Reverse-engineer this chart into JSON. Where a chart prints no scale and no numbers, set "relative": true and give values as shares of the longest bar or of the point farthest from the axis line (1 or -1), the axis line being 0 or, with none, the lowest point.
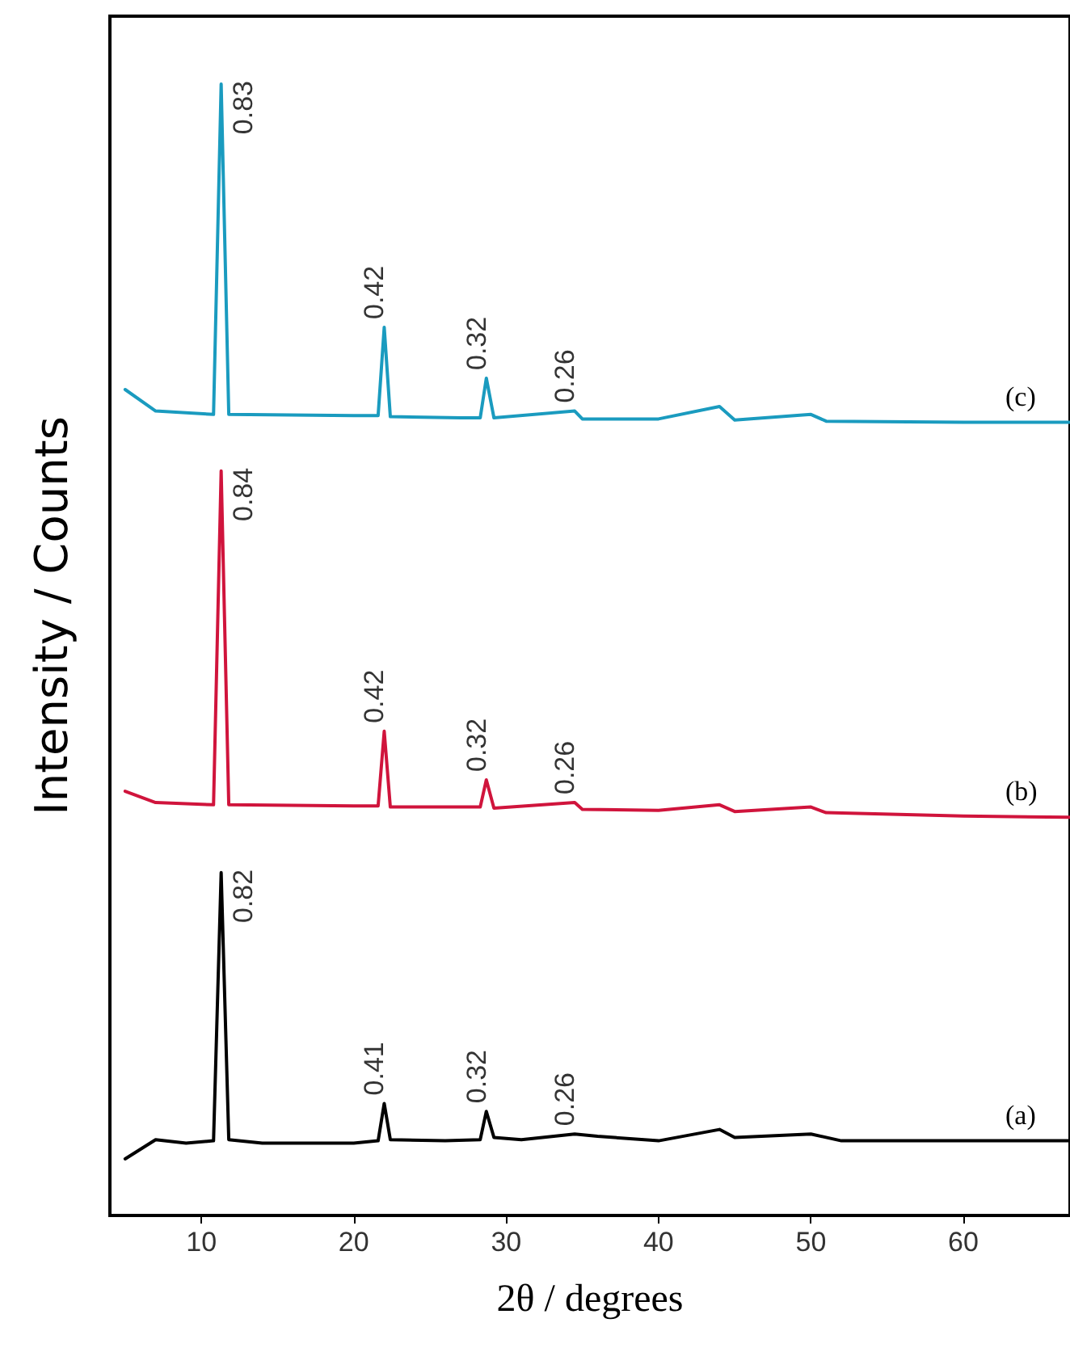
{
  "chart_data": {
    "type": "line",
    "relative": true,
    "xlabel": "2θ / degrees",
    "ylabel": "Intensity / Counts",
    "xlim": [
      4,
      67
    ],
    "xticks": [
      10,
      20,
      30,
      40,
      50,
      60
    ],
    "grid": false,
    "legend": false,
    "marker": "none",
    "line_style": "solid",
    "series": [
      {
        "name": "(a)",
        "color": "#000000",
        "x": [
          5,
          7,
          9,
          10.8,
          11.3,
          11.8,
          14,
          20,
          21.6,
          22,
          22.4,
          26,
          28.3,
          28.7,
          29.2,
          31,
          34.5,
          36,
          40,
          44,
          45,
          50,
          52,
          60,
          67
        ],
        "values": [
          0.05,
          0.067,
          0.064,
          0.066,
          0.303,
          0.067,
          0.064,
          0.064,
          0.066,
          0.099,
          0.067,
          0.066,
          0.067,
          0.092,
          0.069,
          0.067,
          0.072,
          0.07,
          0.066,
          0.076,
          0.069,
          0.072,
          0.066,
          0.066,
          0.066
        ]
      },
      {
        "name": "(b)",
        "color": "#d0143c",
        "x": [
          5,
          7,
          10.8,
          11.3,
          11.8,
          20,
          21.6,
          22,
          22.4,
          27,
          28.3,
          28.7,
          29.2,
          34.5,
          35,
          40,
          44,
          45,
          50,
          51,
          60,
          67
        ],
        "values": [
          0.375,
          0.365,
          0.363,
          0.658,
          0.363,
          0.362,
          0.362,
          0.428,
          0.361,
          0.361,
          0.361,
          0.385,
          0.36,
          0.365,
          0.359,
          0.358,
          0.363,
          0.357,
          0.361,
          0.356,
          0.353,
          0.352
        ]
      },
      {
        "name": "(c)",
        "color": "#1a9bbf",
        "x": [
          5,
          7,
          10.8,
          11.3,
          11.8,
          20,
          21.6,
          22,
          22.4,
          27,
          28.3,
          28.7,
          29.2,
          34.5,
          35,
          40,
          44,
          45,
          50,
          51,
          60,
          67
        ],
        "values": [
          0.73,
          0.711,
          0.708,
          1.0,
          0.708,
          0.707,
          0.707,
          0.785,
          0.706,
          0.705,
          0.705,
          0.74,
          0.705,
          0.711,
          0.704,
          0.704,
          0.715,
          0.703,
          0.708,
          0.702,
          0.701,
          0.701
        ]
      }
    ],
    "annotations": [
      {
        "text": "0.83",
        "x": 11.3,
        "y": 1.0
      },
      {
        "text": "0.42",
        "x": 22,
        "y": 0.785
      },
      {
        "text": "0.32",
        "x": 28.7,
        "y": 0.74
      },
      {
        "text": "0.26",
        "x": 34.5,
        "y": 0.711
      },
      {
        "text": "0.84",
        "x": 11.3,
        "y": 0.658
      },
      {
        "text": "0.42",
        "x": 22,
        "y": 0.428
      },
      {
        "text": "0.32",
        "x": 28.7,
        "y": 0.385
      },
      {
        "text": "0.26",
        "x": 34.5,
        "y": 0.365
      },
      {
        "text": "0.82",
        "x": 11.3,
        "y": 0.303
      },
      {
        "text": "0.41",
        "x": 22,
        "y": 0.099
      },
      {
        "text": "0.32",
        "x": 28.7,
        "y": 0.092
      },
      {
        "text": "0.26",
        "x": 34.5,
        "y": 0.072
      }
    ]
  }
}
